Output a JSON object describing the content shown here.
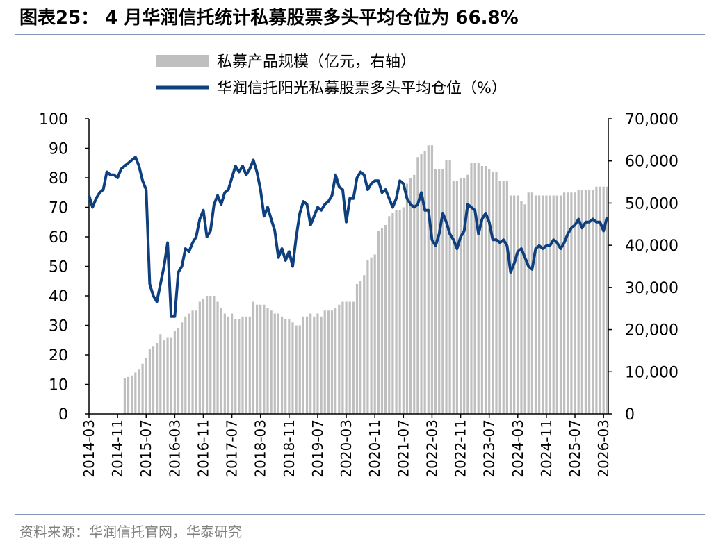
{
  "chart_data": {
    "type": "combo",
    "title": "图表25：  4 月华润信托统计私募股票多头平均仓位为 66.8%",
    "source": "资料来源：华润信托官网，华泰研究",
    "categories": [
      "2014-03",
      null,
      null,
      null,
      null,
      null,
      null,
      null,
      "2014-11",
      null,
      null,
      null,
      null,
      null,
      null,
      null,
      "2015-07",
      null,
      null,
      null,
      null,
      null,
      null,
      null,
      "2016-03",
      null,
      null,
      null,
      null,
      null,
      null,
      null,
      "2016-11",
      null,
      null,
      null,
      null,
      null,
      null,
      null,
      "2017-07",
      null,
      null,
      null,
      null,
      null,
      null,
      null,
      "2018-03",
      null,
      null,
      null,
      null,
      null,
      null,
      null,
      "2018-11",
      null,
      null,
      null,
      null,
      null,
      null,
      null,
      "2019-07",
      null,
      null,
      null,
      null,
      null,
      null,
      null,
      "2020-03",
      null,
      null,
      null,
      null,
      null,
      null,
      null,
      "2020-11",
      null,
      null,
      null,
      null,
      null,
      null,
      null,
      "2021-07",
      null,
      null,
      null,
      null,
      null,
      null,
      null,
      "2022-03",
      null,
      null,
      null,
      null,
      null,
      null,
      null,
      "2022-11",
      null,
      null,
      null,
      null,
      null,
      null,
      null,
      "2023-07",
      null,
      null,
      null,
      null,
      null,
      null,
      null,
      "2024-03",
      null,
      null,
      null,
      null,
      null,
      null,
      null,
      "2024-11",
      null,
      null,
      null,
      null,
      null,
      null,
      null,
      "2025-07",
      null,
      null,
      null,
      null,
      null,
      null,
      null,
      "2026-03",
      null
    ],
    "series": [
      {
        "name": "私募产品规模（亿元，右轴）",
        "type": "bar",
        "axis": "y2",
        "color": "#bfbfbf",
        "values": [
          null,
          null,
          null,
          null,
          null,
          null,
          null,
          null,
          null,
          null,
          8400,
          8750,
          9100,
          9800,
          10500,
          11900,
          13300,
          15400,
          16100,
          16800,
          18900,
          17500,
          18200,
          18200,
          19600,
          20300,
          21700,
          23100,
          23800,
          24500,
          24500,
          26600,
          27300,
          28000,
          28000,
          28000,
          26600,
          25200,
          23800,
          23100,
          23800,
          22400,
          22400,
          23100,
          23100,
          23100,
          26600,
          25900,
          25900,
          25900,
          25200,
          24500,
          23800,
          23800,
          23100,
          22400,
          22400,
          21700,
          21000,
          21000,
          23100,
          23100,
          23800,
          23100,
          23800,
          23100,
          24500,
          24500,
          24500,
          25200,
          25900,
          26600,
          26600,
          26600,
          26600,
          30800,
          31500,
          32900,
          36400,
          37100,
          37800,
          43400,
          44100,
          44800,
          46900,
          47600,
          48300,
          48300,
          49000,
          54600,
          56000,
          56700,
          60900,
          61600,
          62300,
          63700,
          63700,
          58100,
          58100,
          58100,
          60200,
          60200,
          55300,
          55300,
          56000,
          56000,
          56700,
          59500,
          59500,
          59500,
          58800,
          58800,
          58100,
          57400,
          57400,
          55300,
          55300,
          55300,
          51800,
          51800,
          51800,
          50400,
          49700,
          52500,
          52500,
          51800,
          51800,
          51800,
          51800,
          51800,
          51800,
          51800,
          51800,
          52500,
          52500,
          52500,
          52500,
          53200,
          53200,
          53200,
          53200,
          53200,
          53900,
          53900,
          53900,
          53900
        ]
      },
      {
        "name": "华润信托阳光私募股票多头平均仓位（%）",
        "type": "line",
        "color": "#0e3f7e",
        "values": [
          74,
          70,
          73,
          75,
          76,
          82,
          81,
          81,
          80,
          83,
          84,
          85,
          86,
          87,
          84,
          79,
          76,
          44,
          40,
          38,
          44,
          50,
          58,
          33,
          33,
          48,
          50,
          56,
          55,
          58,
          60,
          66,
          69,
          60,
          62,
          71,
          74,
          71,
          75,
          76,
          80,
          84,
          82,
          84,
          81,
          83,
          86,
          82,
          76,
          67,
          70,
          66,
          62,
          53,
          56,
          52,
          55,
          50,
          60,
          68,
          72,
          71,
          64,
          67,
          70,
          69,
          71,
          72,
          74,
          81,
          77,
          76,
          65,
          73,
          73,
          80,
          82,
          81,
          76,
          78,
          79,
          79,
          75,
          76,
          73,
          70,
          73,
          79,
          78,
          73,
          71,
          70,
          71,
          75,
          69,
          69,
          59,
          57,
          61,
          68,
          65,
          61,
          59,
          56,
          60,
          62,
          71,
          70,
          69,
          61,
          66,
          68,
          65,
          59,
          59,
          58,
          59,
          57,
          48,
          51,
          55,
          56,
          53,
          50,
          49,
          56,
          57,
          56,
          57,
          57,
          59,
          58,
          56,
          58,
          61,
          63,
          64,
          66,
          63,
          65,
          65,
          66,
          65,
          65,
          62,
          66.8
        ]
      }
    ],
    "ylim": [
      0,
      100
    ],
    "yticks": [
      0,
      10,
      20,
      30,
      40,
      50,
      60,
      70,
      80,
      90,
      100
    ],
    "y2lim": [
      0,
      70000
    ],
    "y2ticks": [
      0,
      {
        "value": 10000,
        "label": "10,000"
      },
      {
        "value": 20000,
        "label": "20,000"
      },
      {
        "value": 30000,
        "label": "30,000"
      },
      {
        "value": 40000,
        "label": "40,000"
      },
      {
        "value": 50000,
        "label": "50,000"
      },
      {
        "value": 60000,
        "label": "60,000"
      },
      {
        "value": 70000,
        "label": "70,000"
      }
    ],
    "grid": false,
    "legend": "top"
  }
}
